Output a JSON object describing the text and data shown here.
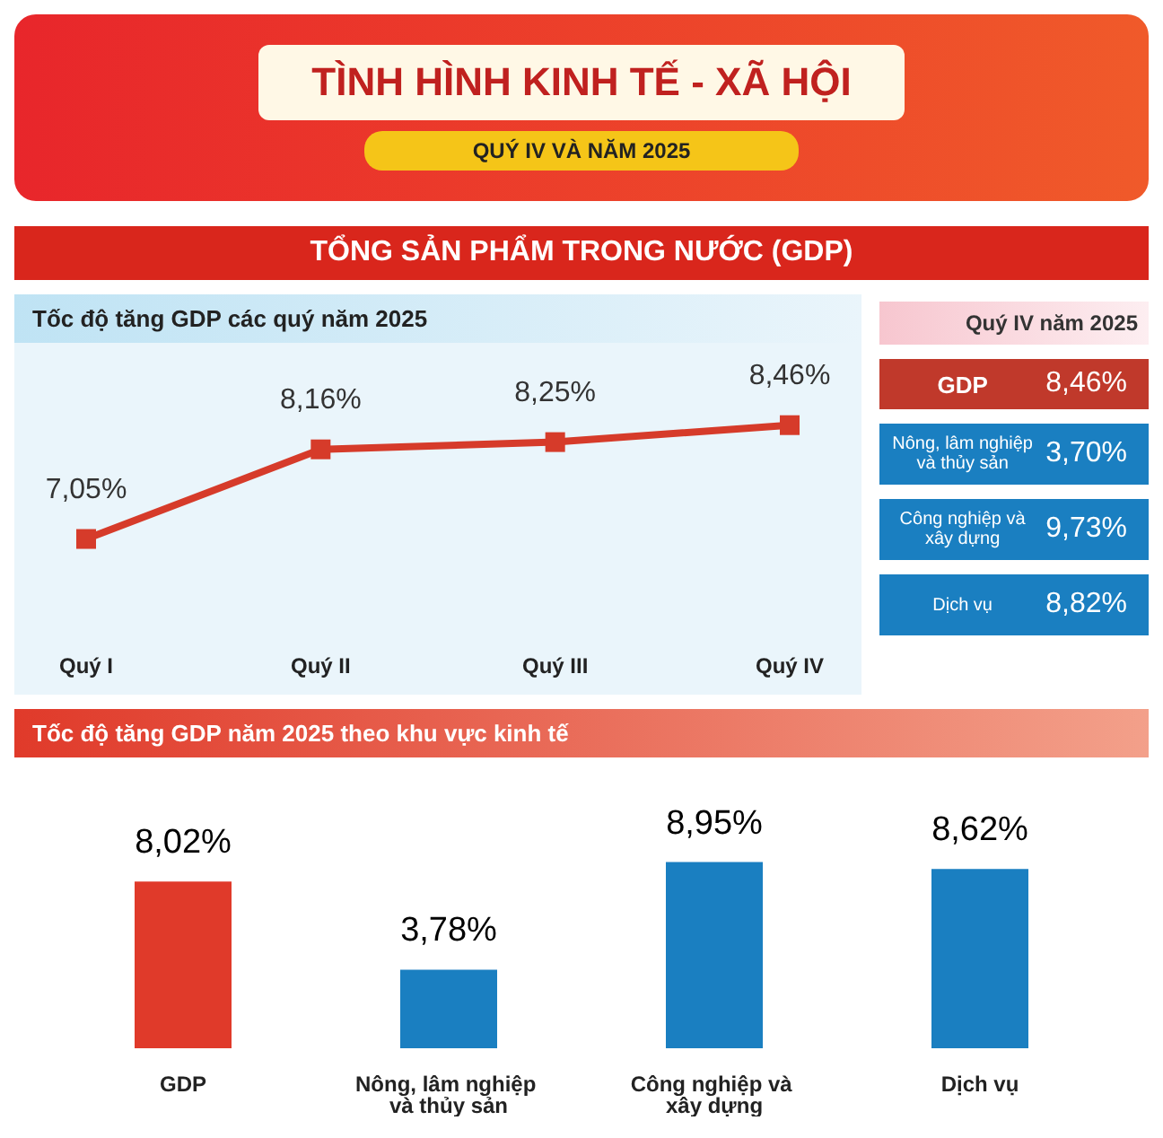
{
  "chart_data": [
    {
      "type": "other",
      "title": "TÌNH HÌNH KINH TẾ - XÃ HỘI",
      "subtitle": "QUÝ IV VÀ NĂM 2025",
      "annotations": [
        "TỔNG SẢN PHẨM TRONG NƯỚC (GDP)"
      ]
    },
    {
      "type": "line",
      "title": "Tốc độ tăng GDP các quý năm 2025",
      "categories": [
        "Quý I",
        "Quý II",
        "Quý III",
        "Quý IV"
      ],
      "values": [
        7.05,
        8.16,
        8.25,
        8.46
      ],
      "value_labels": [
        "7,05%",
        "8,16%",
        "8,25%",
        "8,46%"
      ],
      "color": "#d63b2a",
      "marker": "square"
    },
    {
      "type": "other",
      "title": "Quý IV năm 2025",
      "categories": [
        "GDP",
        "Nông, lâm nghiệp và thủy sản",
        "Công nghiệp và xây dựng",
        "Dịch vụ"
      ],
      "value_labels": [
        "8,46%",
        "3,70%",
        "9,73%",
        "8,82%"
      ],
      "colors": [
        "#c0392b",
        "#1a7fc1",
        "#1a7fc1",
        "#1a7fc1"
      ]
    },
    {
      "type": "bar",
      "title": "Tốc độ tăng GDP năm 2025 theo khu vực kinh tế",
      "categories": [
        "GDP",
        "Nông, lâm nghiệp và thủy sản",
        "Công nghiệp và xây dựng",
        "Dịch vụ"
      ],
      "values": [
        8.02,
        3.78,
        8.95,
        8.62
      ],
      "value_labels": [
        "8,02%",
        "3,78%",
        "8,95%",
        "8,62%"
      ],
      "colors": [
        "#e03a2a",
        "#1a7fc1",
        "#1a7fc1",
        "#1a7fc1"
      ]
    }
  ]
}
